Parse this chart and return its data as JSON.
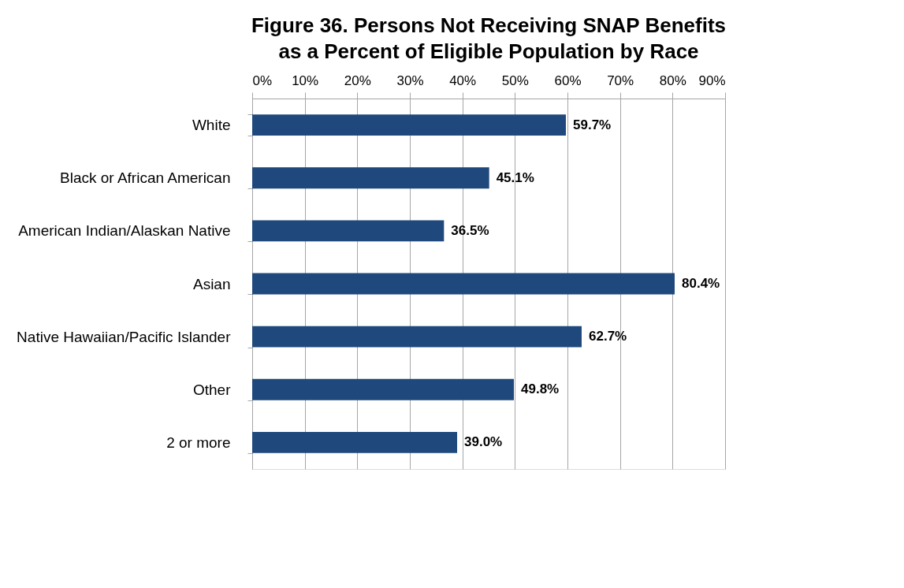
{
  "chart_data": {
    "type": "bar",
    "orientation": "horizontal",
    "title": [
      "Figure 36. Persons Not Receiving SNAP Benefits",
      "as a Percent of Eligible Population by Race"
    ],
    "categories": [
      "White",
      "Black or African American",
      "American Indian/Alaskan Native",
      "Asian",
      "Native Hawaiian/Pacific Islander",
      "Other",
      "2 or more"
    ],
    "values": [
      59.7,
      45.1,
      36.5,
      80.4,
      62.7,
      49.8,
      39.0
    ],
    "value_labels": [
      "59.7%",
      "45.1%",
      "36.5%",
      "80.4%",
      "62.7%",
      "49.8%",
      "39.0%"
    ],
    "color": "#1f497d",
    "xlim": [
      0,
      90
    ],
    "xticks": [
      {
        "value": 0,
        "label": "0%"
      },
      {
        "value": 10,
        "label": "10%"
      },
      {
        "value": 20,
        "label": "20%"
      },
      {
        "value": 30,
        "label": "30%"
      },
      {
        "value": 40,
        "label": "40%"
      },
      {
        "value": 50,
        "label": "50%"
      },
      {
        "value": 60,
        "label": "60%"
      },
      {
        "value": 70,
        "label": "70%"
      },
      {
        "value": 80,
        "label": "80%"
      },
      {
        "value": 90,
        "label": "90%"
      }
    ],
    "grid": "x"
  }
}
